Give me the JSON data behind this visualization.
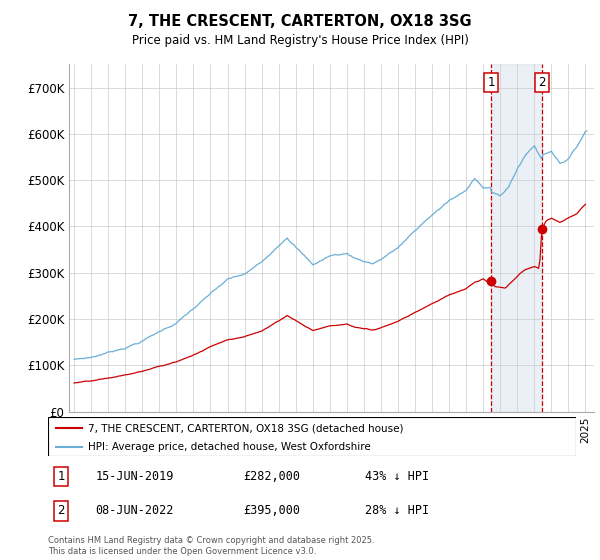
{
  "title": "7, THE CRESCENT, CARTERTON, OX18 3SG",
  "subtitle": "Price paid vs. HM Land Registry's House Price Index (HPI)",
  "legend_line1": "7, THE CRESCENT, CARTERTON, OX18 3SG (detached house)",
  "legend_line2": "HPI: Average price, detached house, West Oxfordshire",
  "sale1_date": "15-JUN-2019",
  "sale1_price": 282000,
  "sale1_label": "43% ↓ HPI",
  "sale2_date": "08-JUN-2022",
  "sale2_price": 395000,
  "sale2_label": "28% ↓ HPI",
  "footnote": "Contains HM Land Registry data © Crown copyright and database right 2025.\nThis data is licensed under the Open Government Licence v3.0.",
  "hpi_color": "#6baed6",
  "sale_color": "#cc0000",
  "vline_color": "#cc0000",
  "shade_color": "#dce6f1",
  "ylim": [
    0,
    750000
  ],
  "yticks": [
    0,
    100000,
    200000,
    300000,
    400000,
    500000,
    600000,
    700000
  ],
  "ytick_labels": [
    "£0",
    "£100K",
    "£200K",
    "£300K",
    "£400K",
    "£500K",
    "£600K",
    "£700K"
  ],
  "sale1_x": 2019.46,
  "sale2_x": 2022.44,
  "background_color": "#ffffff",
  "grid_color": "#cccccc"
}
